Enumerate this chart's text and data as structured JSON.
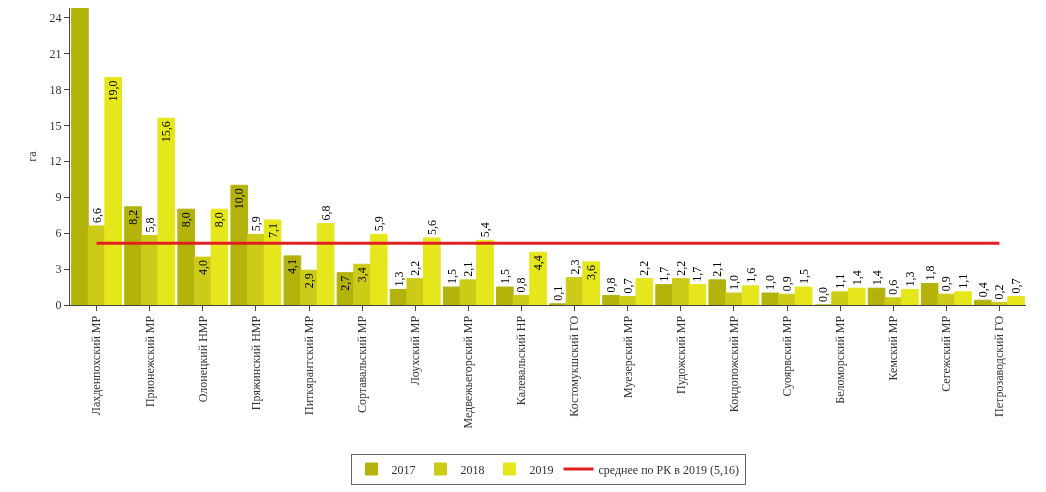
{
  "chart_data": {
    "type": "bar",
    "ylabel": "га",
    "categories": [
      "Лахденпохский МР",
      "Прионежский МР",
      "Олонецкий НМР",
      "Пряжинский НМР",
      "Питкярантский МР",
      "Сортавальский МР",
      "Лоухский МР",
      "Медвежьегорский МР",
      "Калевальский НР",
      "Костомукшский ГО",
      "Муезерский МР",
      "Пудожский МР",
      "Кондопожский МР",
      "Суоярвский МР",
      "Беломорский МР",
      "Кемский МР",
      "Сегежский МР",
      "Петрозаводский ГО"
    ],
    "series": [
      {
        "name": "2017",
        "color": "#b3b30c",
        "values": [
          24.8,
          8.2,
          8.0,
          10.0,
          4.1,
          2.7,
          1.3,
          1.5,
          1.5,
          0.1,
          0.8,
          1.7,
          2.1,
          1.0,
          0.0,
          1.4,
          1.8,
          0.4
        ],
        "value_labels": [
          null,
          "8,2",
          "8,0",
          "10,0",
          "4,1",
          "2,7",
          "1,3",
          "1,5",
          "1,5",
          "0,1",
          "0,8",
          "1,7",
          "2,1",
          "1,0",
          "0,0",
          "1,4",
          "1,8",
          "0,4"
        ]
      },
      {
        "name": "2018",
        "color": "#cccc18",
        "values": [
          6.6,
          5.8,
          4.0,
          5.9,
          2.9,
          3.4,
          2.2,
          2.1,
          0.8,
          2.3,
          0.7,
          2.2,
          1.0,
          0.9,
          1.1,
          0.6,
          0.9,
          0.2
        ],
        "value_labels": [
          "6,6",
          "5,8",
          "4,0",
          "5,9",
          "2,9",
          "3,4",
          "2,2",
          "2,1",
          "0,8",
          "2,3",
          "0,7",
          "2,2",
          "1,0",
          "0,9",
          "1,1",
          "0,6",
          "0,9",
          "0,2"
        ]
      },
      {
        "name": "2019",
        "color": "#e6e61c",
        "values": [
          19.0,
          15.6,
          8.0,
          7.1,
          6.8,
          5.9,
          5.6,
          5.4,
          4.4,
          3.6,
          2.2,
          1.7,
          1.6,
          1.5,
          1.4,
          1.3,
          1.1,
          0.7
        ],
        "value_labels": [
          "19,0",
          "15,6",
          "8,0",
          "7,1",
          "6,8",
          "5,9",
          "5,6",
          "5,4",
          "4,4",
          "3,6",
          "2,2",
          "1,7",
          "1,6",
          "1,5",
          "1,4",
          "1,3",
          "1,1",
          "0,7"
        ]
      }
    ],
    "ylim": [
      0,
      24.8
    ],
    "yticks": [
      0,
      3,
      6,
      9,
      12,
      15,
      18,
      21,
      24
    ],
    "legend": "bottom",
    "ref_lines": [
      {
        "axis": "y",
        "value": 5.16,
        "label": "среднее по РК в 2019 (5,16)",
        "color": "#e02020",
        "line_style": "solid"
      }
    ]
  }
}
